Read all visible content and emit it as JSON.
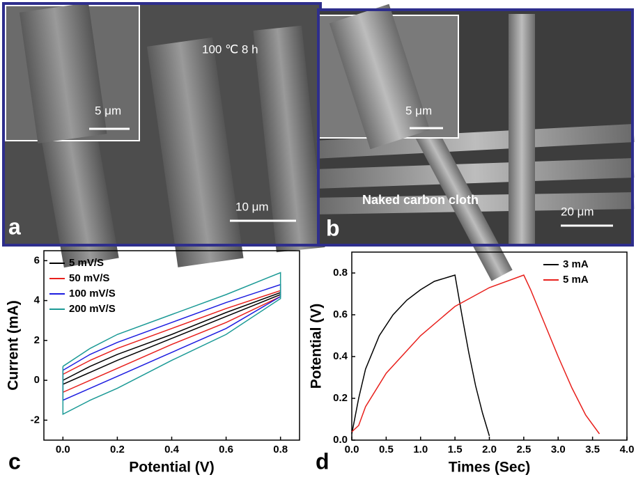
{
  "images": [
    {
      "label": "a",
      "annotation": "100 ℃ 8 h",
      "scale_bar": "10 μm",
      "inset_scale_bar": "5 μm"
    },
    {
      "label": "b",
      "annotation": "Naked carbon cloth",
      "scale_bar": "20 μm",
      "inset_scale_bar": "5 μm"
    }
  ],
  "chart_data": [
    {
      "type": "line",
      "label": "c",
      "x_label": "Potential (V)",
      "y_label": "Current (mA)",
      "xlim": [
        -0.07,
        0.87
      ],
      "ylim": [
        -3,
        6.5
      ],
      "xticks": [
        {
          "value": 0,
          "label": "0.0"
        },
        0.2,
        0.4,
        0.6,
        0.8
      ],
      "yticks": [
        -2,
        0,
        2,
        4,
        6
      ],
      "legend": "upper-left",
      "series": [
        {
          "name": "5 mV/S",
          "color": "#000000",
          "x": [
            0,
            0.1,
            0.2,
            0.4,
            0.6,
            0.8,
            0.8,
            0.6,
            0.4,
            0.2,
            0.1,
            0,
            0
          ],
          "values": [
            0,
            0.7,
            1.3,
            2.3,
            3.4,
            4.4,
            4.3,
            3.2,
            2.1,
            1.0,
            0.4,
            -0.2,
            0
          ]
        },
        {
          "name": "50 mV/S",
          "color": "#e8201c",
          "x": [
            0,
            0.1,
            0.2,
            0.4,
            0.6,
            0.8,
            0.8,
            0.6,
            0.4,
            0.2,
            0.1,
            0,
            0
          ],
          "values": [
            0.3,
            1.0,
            1.6,
            2.6,
            3.6,
            4.5,
            4.2,
            2.9,
            1.8,
            0.6,
            0,
            -0.6,
            0.3
          ]
        },
        {
          "name": "100 mV/S",
          "color": "#1c1ce0",
          "x": [
            0,
            0.1,
            0.2,
            0.4,
            0.6,
            0.8,
            0.8,
            0.6,
            0.4,
            0.2,
            0.1,
            0,
            0
          ],
          "values": [
            0.5,
            1.3,
            1.9,
            2.9,
            3.9,
            4.8,
            4.2,
            2.6,
            1.4,
            0.2,
            -0.4,
            -1.0,
            0.5
          ]
        },
        {
          "name": "200 mV/S",
          "color": "#1b9a96",
          "x": [
            0,
            0.1,
            0.2,
            0.4,
            0.6,
            0.8,
            0.8,
            0.6,
            0.4,
            0.2,
            0.1,
            0,
            0
          ],
          "values": [
            0.7,
            1.6,
            2.3,
            3.3,
            4.3,
            5.4,
            4.1,
            2.3,
            1.0,
            -0.4,
            -1.0,
            -1.7,
            0.7
          ]
        }
      ]
    },
    {
      "type": "line",
      "label": "d",
      "x_label": "Times (Sec)",
      "y_label": "Potential (V)",
      "xlim": [
        0,
        4
      ],
      "ylim": [
        0,
        0.9
      ],
      "xticks": [
        {
          "value": 0,
          "label": "0.0"
        },
        0.5,
        {
          "value": 1,
          "label": "1.0"
        },
        1.5,
        {
          "value": 2,
          "label": "2.0"
        },
        2.5,
        {
          "value": 3,
          "label": "3.0"
        },
        3.5,
        {
          "value": 4,
          "label": "4.0"
        }
      ],
      "yticks": [
        {
          "value": 0,
          "label": "0.0"
        },
        0.2,
        0.4,
        0.6,
        0.8
      ],
      "legend": "upper-right",
      "series": [
        {
          "name": "3 mA",
          "color": "#000000",
          "x": [
            0,
            0.1,
            0.2,
            0.4,
            0.6,
            0.8,
            1.0,
            1.2,
            1.4,
            1.5,
            1.6,
            1.7,
            1.8,
            1.9,
            2.0
          ],
          "values": [
            0.03,
            0.2,
            0.34,
            0.5,
            0.6,
            0.67,
            0.72,
            0.76,
            0.78,
            0.79,
            0.6,
            0.42,
            0.26,
            0.13,
            0.02
          ]
        },
        {
          "name": "5 mA",
          "color": "#e8201c",
          "x": [
            0,
            0.1,
            0.2,
            0.5,
            1.0,
            1.5,
            2.0,
            2.5,
            2.6,
            2.8,
            3.0,
            3.2,
            3.4,
            3.6
          ],
          "values": [
            0.04,
            0.07,
            0.16,
            0.32,
            0.5,
            0.64,
            0.73,
            0.79,
            0.72,
            0.56,
            0.4,
            0.25,
            0.12,
            0.03
          ]
        }
      ]
    }
  ]
}
